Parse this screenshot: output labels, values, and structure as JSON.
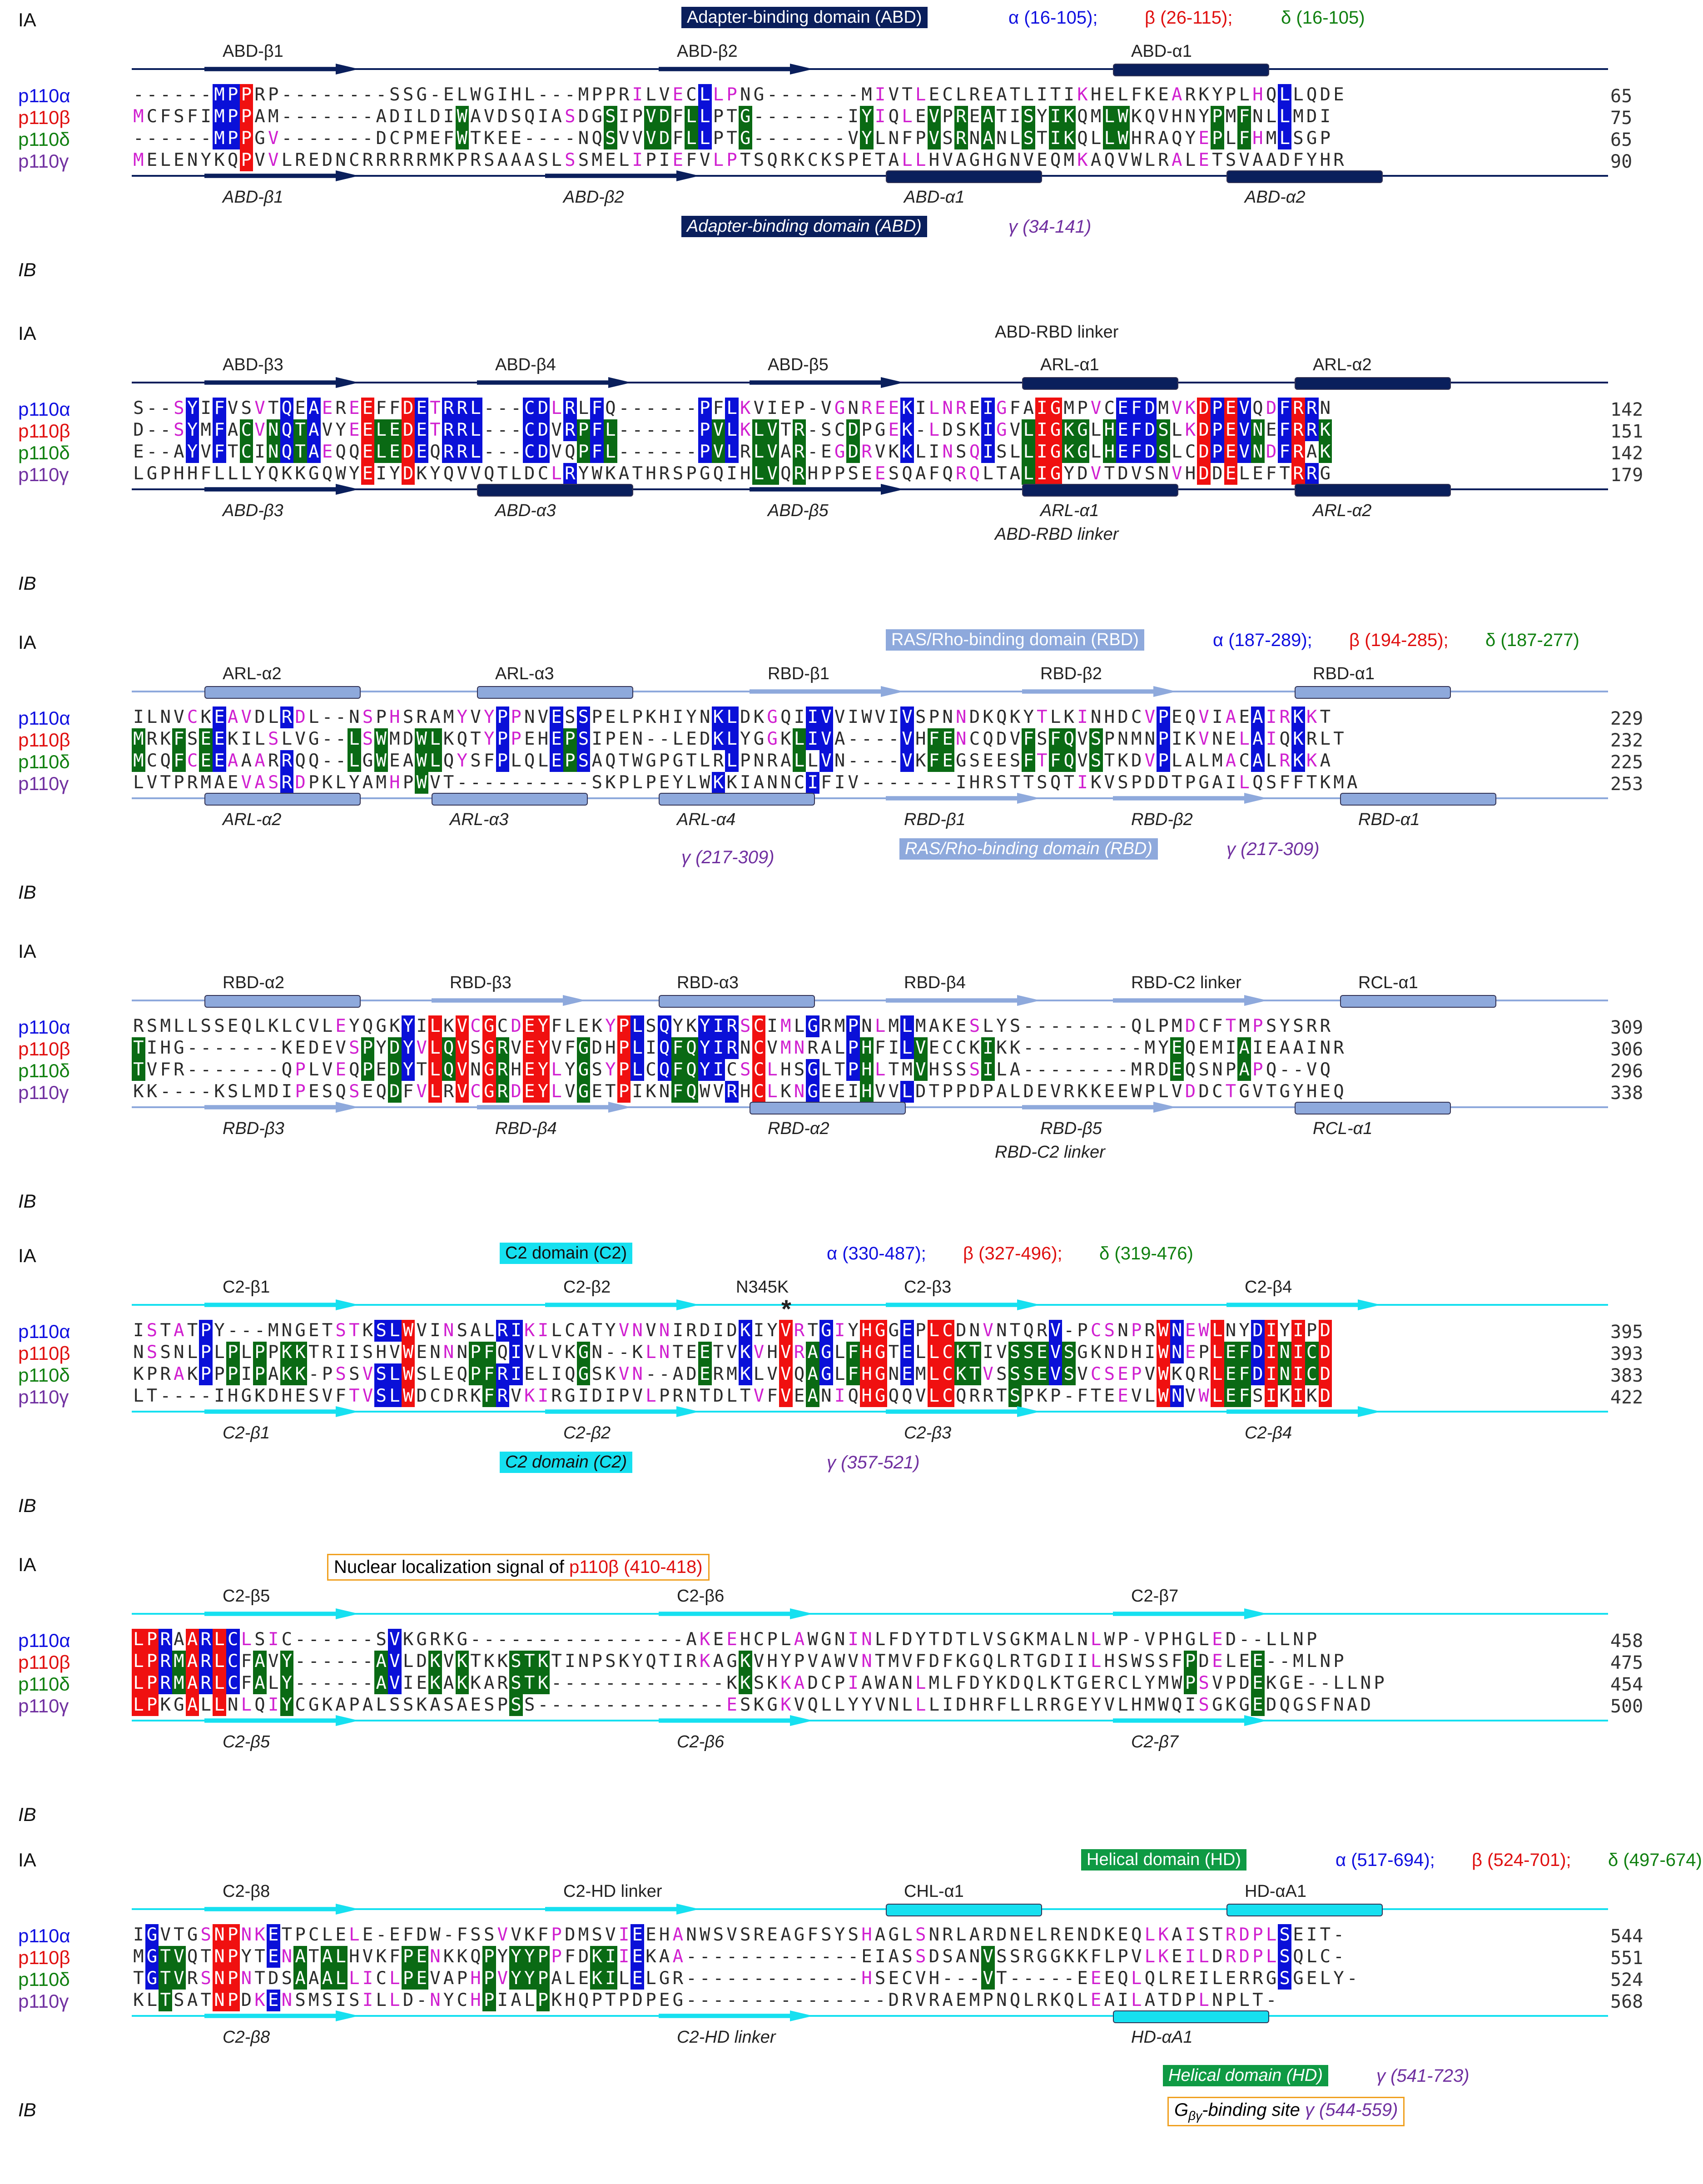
{
  "species": [
    {
      "name": "p110α",
      "color": "#1010e0"
    },
    {
      "name": "p110β",
      "color": "#e01010"
    },
    {
      "name": "p110δ",
      "color": "#108010"
    },
    {
      "name": "p110γ",
      "color": "#7030a0"
    }
  ],
  "labels": {
    "ia": "IA",
    "ib": "IB"
  },
  "blocks": [
    {
      "rows": [
        {
          "seq": "------MPPRP--------SSG-ELWGIHL---MPPRILVECLLPNG-------MIVTLECLREATLITIKHELFKEARKYPLHQLLQDE",
          "num": "65"
        },
        {
          "seq": "MCFSFIMPPAM-------ADILDIWAVDSQIASDGSIPVDFLLPTG-------IYIQLEVPREATISYIKQMLWKQVHNYPMFNLLMDI",
          "num": "75"
        },
        {
          "seq": "------MPPGV-------DCPMEFWTKEE----NQSVVVDFLLPTG-------VYLNFPVSRNANLSTIKQLLWHRAQYEPLFHMLSGP",
          "num": "65"
        },
        {
          "seq": "MELENYKQPVVLREDNCRRRRRMKPRSAAASLSSMELIPIEFVLPTSQRKCKSPETALLHVAGHGNVEQMKAQVWLRALETSVAADFYHR",
          "num": "90"
        }
      ],
      "top": {
        "domain": "Adapter-binding domain (ABD)",
        "ranges": [
          "α (16-105);",
          "β (26-115);",
          "δ (16-105)"
        ],
        "ss": [
          "ABD-β1",
          "ABD-β2",
          "ABD-α1"
        ]
      },
      "bottom": {
        "ss": [
          "ABD-β1",
          "ABD-β2",
          "ABD-α1",
          "ABD-α2"
        ],
        "domain": "Adapter-binding domain (ABD)",
        "range": "γ (34-141)"
      }
    },
    {
      "rows": [
        {
          "seq": "S--SYIFVSVTQEAEREEFFDETRRL---CDLRLFQ------PFLKVIEP-VGNREEKILNREIGFAIGMPVCEFDMVKDPEVQDFRRN",
          "num": "142"
        },
        {
          "seq": "D--SYMFACVNQTAVYEELEDETRRL---CDVRPFL------PVLKLVTR-SCDPGEK-LDSKIGVLIGKGLHEFDSLKDPEVNEFRRK",
          "num": "151"
        },
        {
          "seq": "E--AYVFTCINQTAEQQELEDEQRRL---CDVQPFL------PVLRLVAR-EGDRVKKLINSQISLLIGKGLHEFDSLCDPEVNDFRAK",
          "num": "142"
        },
        {
          "seq": "LGPHHFLLLYQKKGQWYEIYDKYQVVQTLDCLRYWKATHRSPGQIHLVQRHPPSEESQAFQRQLTALIGYDVTDVSNVHDDELEFTRRG",
          "num": "179"
        }
      ],
      "top": {
        "linker": "ABD-RBD linker",
        "ss": [
          "ABD-β3",
          "ABD-β4",
          "ABD-β5",
          "ARL-α1",
          "ARL-α2"
        ]
      },
      "bottom": {
        "ss": [
          "ABD-β3",
          "ABD-α3",
          "ABD-β5",
          "ARL-α1",
          "ARL-α2"
        ],
        "linker": "ABD-RBD linker"
      }
    },
    {
      "rows": [
        {
          "seq": "ILNVCKEAVDLRDL--NSPHSRAMYVYPPNVESSPELPKHIYNKLDKGQIIVVIWVIVSPNNDKQKYTLKINHDCVPEQVIAEAIRKKT",
          "num": "229"
        },
        {
          "seq": "MRKFSEEKILSLVG--LSWMDWLKQTYPPEHEPSIPEN--LEDKLYGGKLIVA----VHFENCQDVFSFQVSPNMNPIKVNELAIQKRLT",
          "num": "232"
        },
        {
          "seq": "MCQFCEEAAARRQQ--LGWEAWLQYSFPLQLEPSAQTWGPGTLRLPNRALLVN----VKFEGSEESFTFQVSTKDVPLALMACALRKKA",
          "num": "225"
        },
        {
          "seq": "LVTPRMAEVASRDPKLYAMHPWVT----------SKPLPEYLWKKIANNCIFIV-------IHRSTTSQTIKVSPDDTPGAILQSFFTKMA",
          "num": "253"
        }
      ],
      "top": {
        "domain": "RAS/Rho-binding domain (RBD)",
        "ranges": [
          "α (187-289);",
          "β (194-285);",
          "δ (187-277)"
        ],
        "ss": [
          "ARL-α2",
          "ARL-α3",
          "RBD-β1",
          "RBD-β2",
          "RBD-α1"
        ]
      },
      "bottom": {
        "ss": [
          "ARL-α2",
          "ARL-α3",
          "ARL-α4",
          "RBD-β1",
          "RBD-β2",
          "RBD-α1"
        ],
        "range_left": "γ (217-309)",
        "domain": "RAS/Rho-binding domain (RBD)",
        "range": "γ (217-309)"
      }
    },
    {
      "rows": [
        {
          "seq": "RSMLLSSEQLKLCVLEYQGKYILKVCGCDEYFLEKYPLSQYKYIRSCIMLGRMPNLMLMAKESLYS--------QLPMDCFTMPSYSRR",
          "num": "309"
        },
        {
          "seq": "TIHG-------KEDEVSPYDYVLQVSGRVEYVFGDHPLIQFQYIRNCVMNRALPHFILVECCKIKK---------MYEQEMIAIEAAINR",
          "num": "306"
        },
        {
          "seq": "TVFR-------QPLVEQPEDYTLQVNGRHEYLYGSYPLCQFQYICSCLHSGLTPHLTMVHSSSILA--------MRDEQSNPAPQ--VQ",
          "num": "296"
        },
        {
          "seq": "KK----KSLMDIPESQSEQDFVLRVCGRDEYLVGETPIKNFQWVRHCLKNGEEIHVVLDTPPDPALDEVRKKEEWPLVDDCTGVTGYHEQ",
          "num": "338"
        }
      ],
      "top": {
        "ss": [
          "RBD-α2",
          "RBD-β3",
          "RBD-α3",
          "RBD-β4",
          "RBD-C2 linker",
          "RCL-α1"
        ]
      },
      "bottom": {
        "ss": [
          "RBD-β3",
          "RBD-β4",
          "RBD-α2",
          "RBD-β5",
          "RCL-α1"
        ],
        "linker": "RBD-C2 linker"
      }
    },
    {
      "rows": [
        {
          "seq": "ISTATPY---MNGETSTKSLWVINSALRIKILCATYVNVNIRDIDKIYVRTGIYHGGEPLCDNVNTQRV-PCSNPRWNEWLNYDIYIPD",
          "num": "395"
        },
        {
          "seq": "NSSNLPLPLPPKKTRIISHVWENNNPFQIVLVKGN--KLNTEETVKVHVRAGLFHGTELLCKTIVSSEVSGKNDHIWNEPLEFDINICD",
          "num": "393"
        },
        {
          "seq": "KPRAKPPPIPAKK-PSSVSLWSLEQPFRIELIQGSKVN--ADERMKLVVQAGLFHGNEMLCKTVSSSEVSVCSEPVWKQRLEFDINICD",
          "num": "383"
        },
        {
          "seq": "LT----IHGKDHESVFTVSLWDCDRKFRVKIRGIDIPVLPRNTDLTVFVEANIQHGQQVLCQRRTSPKP-FTEEVLWNVWLEFSIKIKD",
          "num": "422"
        }
      ],
      "top": {
        "domain": "C2 domain (C2)",
        "ranges": [
          "α (330-487);",
          "β (327-496);",
          "δ (319-476)"
        ],
        "mutation": "N345K",
        "star": "*",
        "ss": [
          "C2-β1",
          "C2-β2",
          "C2-β3",
          "C2-β4"
        ]
      },
      "bottom": {
        "ss": [
          "C2-β1",
          "C2-β2",
          "C2-β3",
          "C2-β4"
        ],
        "domain": "C2 domain (C2)",
        "range": "γ (357-521)"
      }
    },
    {
      "rows": [
        {
          "seq": "LPRAARLCLSIC------SVKGRKG----------------AKEEHCPLAWGNINLFDYTDTLVSGKMALNLWP-VPHGLED--LLNP",
          "num": "458"
        },
        {
          "seq": "LPRMARLCFAVY------AVLDKVKTKKSTKTINPSKYQTIRKAGKVHYPVAWVNTMVFDFKGQLRTGDIILHSWSSFPDELEE--MLNP",
          "num": "475"
        },
        {
          "seq": "LPRMARLCFALY------AVIEKAKKARSTK-------------KKSKKADCPIAWANLMLFDYKDQLKTGERCLYMWPSVPDEKGE--LLNP",
          "num": "454"
        },
        {
          "seq": "LPKGALLNLQIYCGKAPALSSKASAESPSS--------------ESKGKVQLLYYVNLLLIDHRFLLRRGEYVLHMWQISGKGEDQGSFNAD",
          "num": "500"
        }
      ],
      "top": {
        "nls_prefix": "Nuclear localization signal of ",
        "nls_species": "p110β (410-418)",
        "ss": [
          "C2-β5",
          "C2-β6",
          "C2-β7"
        ]
      },
      "bottom": {
        "ss": [
          "C2-β5",
          "C2-β6",
          "C2-β7"
        ]
      }
    },
    {
      "rows": [
        {
          "seq": "IGVTGSNPNKETPCLELE-EFDW-FSSVVKFPDMSVIEEHANWSVSREAGFSYSHAGLSNRLARDNELRENDKEQLKAISTRDPLSEIT-",
          "num": "544"
        },
        {
          "seq": "MGTVQTNPYTENATALHVKFPENKKQPYYYPPFDKIIEKAA-------------EIASSDSANVSSRGGKKFLPVLKEILDRDPLSQLC-",
          "num": "551"
        },
        {
          "seq": "TGTVRSNPNTDSAAALLICLPEVAPHPVYYPALEKILELGR-------------HSECVH---VT-----EEEQLQLREILERRGSGELY-",
          "num": "524"
        },
        {
          "seq": "KLTSATNPDKENSMSISILLD-NYCHPIALPKHQPTPDPEG---------------DRVRAEMPNQLRKQLEAILATDPLNPLT-",
          "num": "568"
        }
      ],
      "top": {
        "ss": [
          "C2-β8",
          "C2-HD linker",
          "CHL-α1",
          "HD-αA1"
        ],
        "domain": "Helical domain (HD)",
        "ranges": [
          "α (517-694);",
          "β (524-701);",
          "δ (497-674)"
        ]
      },
      "bottom": {
        "ss": [
          "C2-β8",
          "C2-HD linker",
          "HD-αA1"
        ],
        "domain": "Helical domain (HD)",
        "range": "γ (541-723)",
        "gbg_prefix": "G",
        "gbg_sub": "βγ",
        "gbg_suffix": "-binding site",
        "gbg_range": "γ (544-559)"
      }
    }
  ],
  "colors": {
    "blue": "#0a10d8",
    "red": "#f01010",
    "green": "#0a6a14",
    "magenta": "#d020d0",
    "abd": "#0a1f5c",
    "rbd": "#8ea9dc",
    "c2": "#16e0f0",
    "hd": "#0f9a44",
    "gray": "#b8b8b8"
  }
}
